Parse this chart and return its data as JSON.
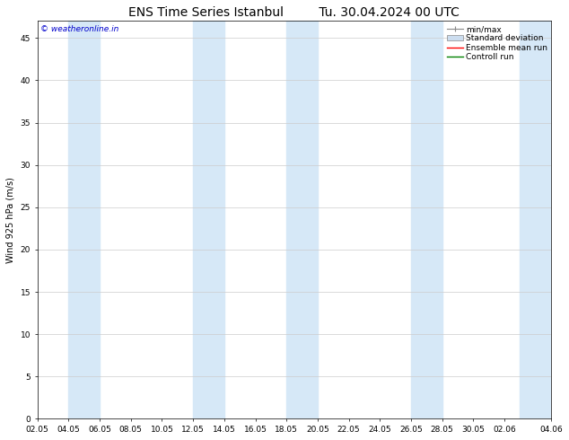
{
  "title": "ENS Time Series Istanbul",
  "subtitle": "Tu. 30.04.2024 00 UTC",
  "ylabel": "Wind 925 hPa (m/s)",
  "watermark": "© weatheronline.in",
  "watermark_color": "#0000cc",
  "ylim": [
    0,
    47
  ],
  "yticks": [
    0,
    5,
    10,
    15,
    20,
    25,
    30,
    35,
    40,
    45
  ],
  "xtick_labels": [
    "02.05",
    "04.05",
    "06.05",
    "08.05",
    "10.05",
    "12.05",
    "14.05",
    "16.05",
    "18.05",
    "20.05",
    "22.05",
    "24.05",
    "26.05",
    "28.05",
    "30.05",
    "02.06",
    "04.06"
  ],
  "band_color": "#d6e8f7",
  "band_starts_days": [
    2,
    10,
    16,
    24,
    31
  ],
  "band_ends_days": [
    4,
    12,
    18,
    26,
    33
  ],
  "grid_color": "#cccccc",
  "background_color": "#ffffff",
  "title_fontsize": 10,
  "label_fontsize": 7,
  "tick_fontsize": 6.5,
  "watermark_fontsize": 6.5,
  "legend_fontsize": 6.5,
  "total_days": 33
}
